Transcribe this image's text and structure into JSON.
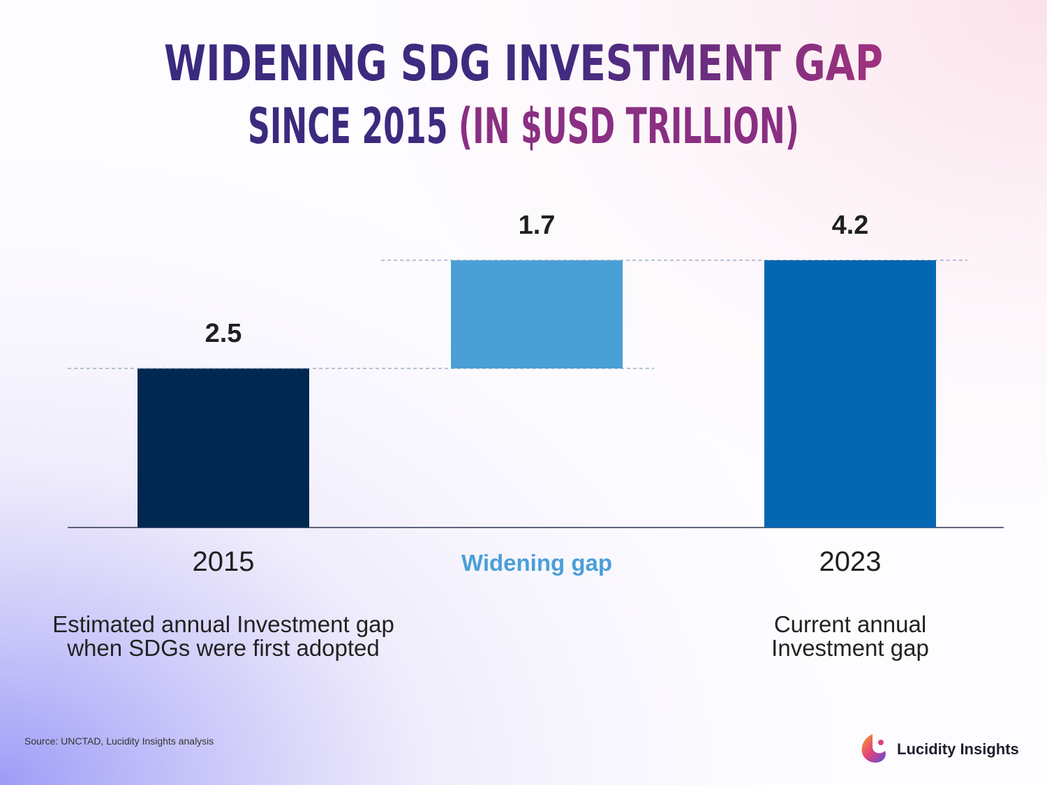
{
  "chart_data": {
    "type": "waterfall",
    "title_lines": [
      "WIDENING SDG INVESTMENT GAP",
      "SINCE 2015",
      "(IN $USD TRILLION)"
    ],
    "categories": [
      "2015",
      "Widening gap",
      "2023"
    ],
    "values": [
      2.5,
      1.7,
      4.2
    ],
    "kinds": [
      "total",
      "increase",
      "total"
    ],
    "colors": [
      "#002850",
      "#4a9fd6",
      "#0567b1"
    ],
    "descriptions": [
      "Estimated annual Investment gap",
      "when SDGs were first adopted",
      "Current annual",
      "Investment gap"
    ],
    "source": "Source: UNCTAD, Lucidity Insights analysis",
    "brand": "Lucidity Insights"
  }
}
